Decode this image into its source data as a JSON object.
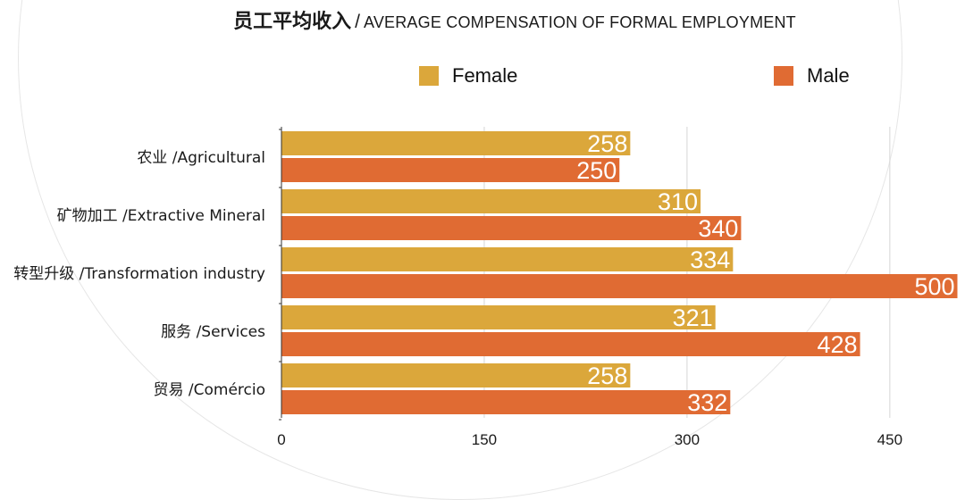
{
  "title": {
    "cn": "员工平均收入",
    "separator": "/",
    "en": "AVERAGE COMPENSATION OF FORMAL EMPLOYMENT"
  },
  "colors": {
    "female": "#dba73b",
    "male": "#e06b33"
  },
  "chart_data": {
    "type": "bar",
    "orientation": "horizontal",
    "categories": [
      "农业 /Agricultural",
      "矿物加工 /Extractive Mineral",
      "转型升级 /Transformation industry",
      "服务 /Services",
      "贸易 /Comércio"
    ],
    "series": [
      {
        "name": "Female",
        "values": [
          258,
          310,
          334,
          321,
          258
        ]
      },
      {
        "name": "Male",
        "values": [
          250,
          340,
          500,
          428,
          332
        ]
      }
    ],
    "xticks": [
      "0",
      "150",
      "300",
      "450"
    ],
    "xlim": [
      0,
      500
    ],
    "grid": true,
    "legend_position": "top",
    "data_labels": true
  }
}
